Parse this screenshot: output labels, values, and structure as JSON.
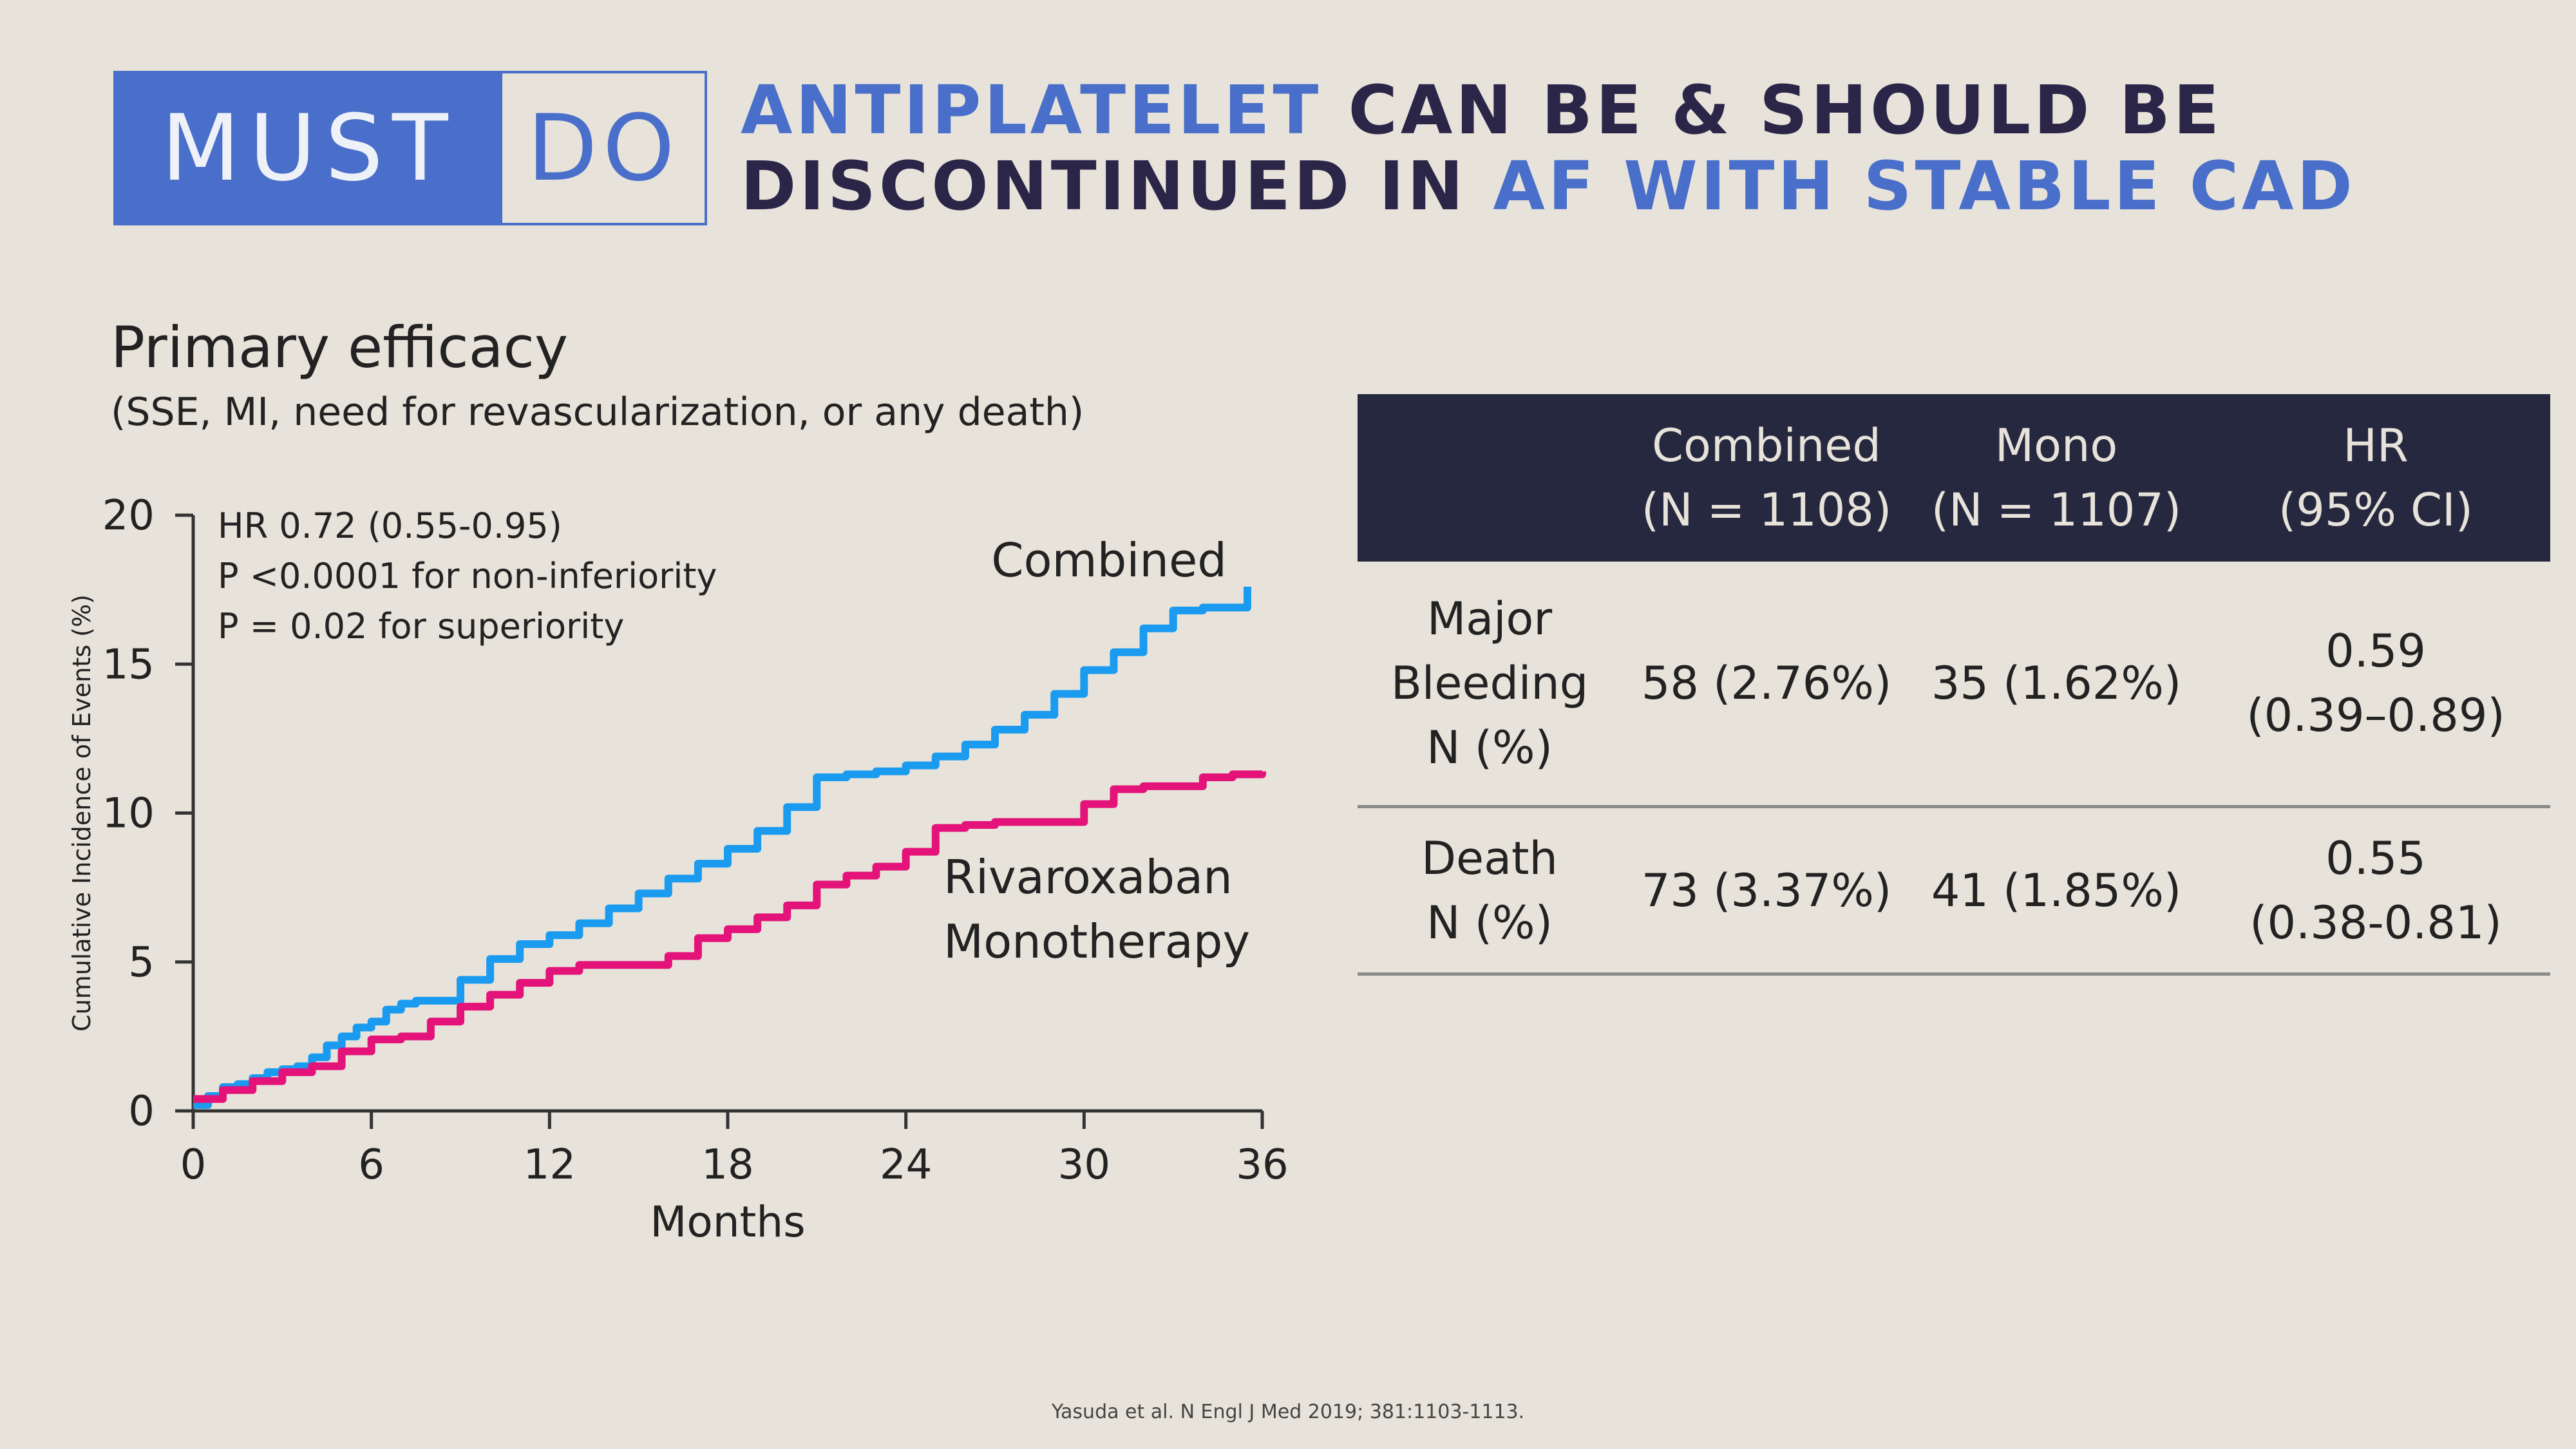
{
  "badge": {
    "must": "MUST",
    "do": "DO"
  },
  "headline": {
    "line1_highlight": "ANTIPLATELET",
    "line1_rest": " CAN BE & SHOULD BE",
    "line2_rest": "DISCONTINUED IN ",
    "line2_highlight": "AF WITH STABLE CAD"
  },
  "section": {
    "title": "Primary efficacy",
    "subtitle": "(SSE, MI, need for revascularization, or any death)"
  },
  "colors": {
    "combined": "#1a9bf0",
    "mono": "#e3137a",
    "accent": "#4a6fca",
    "navy": "#262840"
  },
  "chart_data": {
    "type": "line",
    "xlabel": "Months",
    "ylabel": "Cumulative Incidence  of Events (%)",
    "xlim": [
      0,
      36
    ],
    "ylim": [
      0,
      20
    ],
    "xticks": [
      "0",
      "6",
      "12",
      "18",
      "24",
      "30",
      "36"
    ],
    "yticks": [
      "0",
      "5",
      "10",
      "15",
      "20"
    ],
    "grid": false,
    "annotations": [
      "HR 0.72 (0.55-0.95)",
      "P <0.0001 for non-inferiority",
      "P = 0.02 for superiority"
    ],
    "series": [
      {
        "name": "Combined",
        "color": "#1a9bf0",
        "x": [
          0,
          0.5,
          1,
          1.5,
          2,
          2.5,
          3,
          3.5,
          4,
          4.5,
          5,
          5.5,
          6,
          6.5,
          7,
          7.5,
          8,
          9,
          10,
          11,
          12,
          13,
          14,
          15,
          16,
          17,
          18,
          19,
          20,
          21,
          22,
          23,
          24,
          25,
          26,
          27,
          28,
          29,
          30,
          31,
          32,
          33,
          34,
          35,
          35.5
        ],
        "y": [
          0.2,
          0.5,
          0.8,
          0.9,
          1.1,
          1.3,
          1.4,
          1.5,
          1.8,
          2.2,
          2.5,
          2.8,
          3.0,
          3.4,
          3.6,
          3.7,
          3.7,
          4.4,
          5.1,
          5.6,
          5.9,
          6.3,
          6.8,
          7.3,
          7.8,
          8.3,
          8.8,
          9.4,
          10.2,
          11.2,
          11.3,
          11.4,
          11.6,
          11.9,
          12.3,
          12.8,
          13.3,
          14.0,
          14.8,
          15.4,
          16.2,
          16.8,
          16.9,
          16.9,
          17.6
        ]
      },
      {
        "name": "Rivaroxaban Monotherapy",
        "color": "#e3137a",
        "x": [
          0,
          1,
          2,
          3,
          4,
          5,
          6,
          7,
          8,
          9,
          10,
          11,
          12,
          13,
          14,
          15,
          16,
          17,
          18,
          19,
          20,
          21,
          22,
          23,
          24,
          25,
          26,
          27,
          28,
          29,
          30,
          31,
          32,
          33,
          34,
          35,
          36
        ],
        "y": [
          0.4,
          0.7,
          1.0,
          1.3,
          1.5,
          2.0,
          2.4,
          2.5,
          3.0,
          3.5,
          3.9,
          4.3,
          4.7,
          4.9,
          4.9,
          4.9,
          5.2,
          5.8,
          6.1,
          6.5,
          6.9,
          7.6,
          7.9,
          8.2,
          8.7,
          9.5,
          9.6,
          9.7,
          9.7,
          9.7,
          10.3,
          10.8,
          10.9,
          10.9,
          11.2,
          11.3,
          11.4
        ]
      }
    ],
    "series_labels": {
      "combined": "Combined",
      "mono_line1": "Rivaroxaban",
      "mono_line2": "Monotherapy"
    }
  },
  "table": {
    "header": {
      "combined_l1": "Combined",
      "combined_l2": "(N = 1108)",
      "mono_l1": "Mono",
      "mono_l2": "(N = 1107)",
      "hr_l1": "HR",
      "hr_l2": "(95% CI)"
    },
    "rows": [
      {
        "label_l1": "Major",
        "label_l2": "Bleeding",
        "label_l3": "N (%)",
        "combined": "58 (2.76%)",
        "mono": "35 (1.62%)",
        "hr_l1": "0.59",
        "hr_l2": "(0.39–0.89)"
      },
      {
        "label_l1": "Death",
        "label_l2": "N (%)",
        "combined": "73 (3.37%)",
        "mono": "41 (1.85%)",
        "hr_l1": "0.55",
        "hr_l2": "(0.38-0.81)"
      }
    ]
  },
  "citation": "Yasuda et al. N Engl J Med 2019; 381:1103-1113."
}
